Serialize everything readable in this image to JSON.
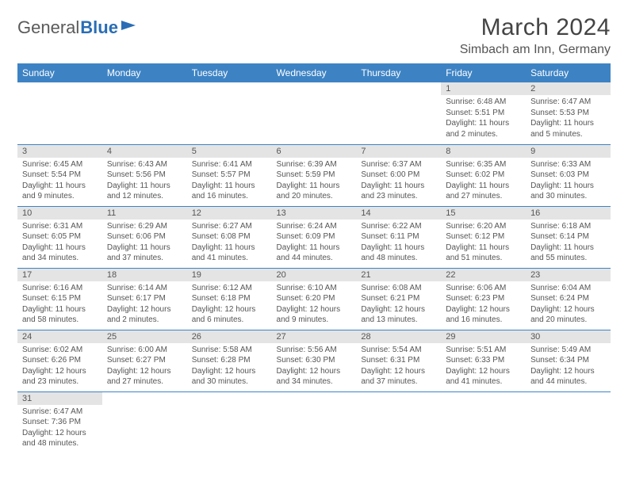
{
  "logo": {
    "text1": "General",
    "text2": "Blue"
  },
  "title": "March 2024",
  "location": "Simbach am Inn, Germany",
  "colors": {
    "header_bg": "#3d83c4",
    "header_text": "#ffffff",
    "daynum_bg": "#e4e4e4",
    "border": "#3d83c4",
    "body_text": "#555555"
  },
  "day_headers": [
    "Sunday",
    "Monday",
    "Tuesday",
    "Wednesday",
    "Thursday",
    "Friday",
    "Saturday"
  ],
  "weeks": [
    [
      {
        "n": "",
        "empty": true
      },
      {
        "n": "",
        "empty": true
      },
      {
        "n": "",
        "empty": true
      },
      {
        "n": "",
        "empty": true
      },
      {
        "n": "",
        "empty": true
      },
      {
        "n": "1",
        "sr": "Sunrise: 6:48 AM",
        "ss": "Sunset: 5:51 PM",
        "dl1": "Daylight: 11 hours",
        "dl2": "and 2 minutes."
      },
      {
        "n": "2",
        "sr": "Sunrise: 6:47 AM",
        "ss": "Sunset: 5:53 PM",
        "dl1": "Daylight: 11 hours",
        "dl2": "and 5 minutes."
      }
    ],
    [
      {
        "n": "3",
        "sr": "Sunrise: 6:45 AM",
        "ss": "Sunset: 5:54 PM",
        "dl1": "Daylight: 11 hours",
        "dl2": "and 9 minutes."
      },
      {
        "n": "4",
        "sr": "Sunrise: 6:43 AM",
        "ss": "Sunset: 5:56 PM",
        "dl1": "Daylight: 11 hours",
        "dl2": "and 12 minutes."
      },
      {
        "n": "5",
        "sr": "Sunrise: 6:41 AM",
        "ss": "Sunset: 5:57 PM",
        "dl1": "Daylight: 11 hours",
        "dl2": "and 16 minutes."
      },
      {
        "n": "6",
        "sr": "Sunrise: 6:39 AM",
        "ss": "Sunset: 5:59 PM",
        "dl1": "Daylight: 11 hours",
        "dl2": "and 20 minutes."
      },
      {
        "n": "7",
        "sr": "Sunrise: 6:37 AM",
        "ss": "Sunset: 6:00 PM",
        "dl1": "Daylight: 11 hours",
        "dl2": "and 23 minutes."
      },
      {
        "n": "8",
        "sr": "Sunrise: 6:35 AM",
        "ss": "Sunset: 6:02 PM",
        "dl1": "Daylight: 11 hours",
        "dl2": "and 27 minutes."
      },
      {
        "n": "9",
        "sr": "Sunrise: 6:33 AM",
        "ss": "Sunset: 6:03 PM",
        "dl1": "Daylight: 11 hours",
        "dl2": "and 30 minutes."
      }
    ],
    [
      {
        "n": "10",
        "sr": "Sunrise: 6:31 AM",
        "ss": "Sunset: 6:05 PM",
        "dl1": "Daylight: 11 hours",
        "dl2": "and 34 minutes."
      },
      {
        "n": "11",
        "sr": "Sunrise: 6:29 AM",
        "ss": "Sunset: 6:06 PM",
        "dl1": "Daylight: 11 hours",
        "dl2": "and 37 minutes."
      },
      {
        "n": "12",
        "sr": "Sunrise: 6:27 AM",
        "ss": "Sunset: 6:08 PM",
        "dl1": "Daylight: 11 hours",
        "dl2": "and 41 minutes."
      },
      {
        "n": "13",
        "sr": "Sunrise: 6:24 AM",
        "ss": "Sunset: 6:09 PM",
        "dl1": "Daylight: 11 hours",
        "dl2": "and 44 minutes."
      },
      {
        "n": "14",
        "sr": "Sunrise: 6:22 AM",
        "ss": "Sunset: 6:11 PM",
        "dl1": "Daylight: 11 hours",
        "dl2": "and 48 minutes."
      },
      {
        "n": "15",
        "sr": "Sunrise: 6:20 AM",
        "ss": "Sunset: 6:12 PM",
        "dl1": "Daylight: 11 hours",
        "dl2": "and 51 minutes."
      },
      {
        "n": "16",
        "sr": "Sunrise: 6:18 AM",
        "ss": "Sunset: 6:14 PM",
        "dl1": "Daylight: 11 hours",
        "dl2": "and 55 minutes."
      }
    ],
    [
      {
        "n": "17",
        "sr": "Sunrise: 6:16 AM",
        "ss": "Sunset: 6:15 PM",
        "dl1": "Daylight: 11 hours",
        "dl2": "and 58 minutes."
      },
      {
        "n": "18",
        "sr": "Sunrise: 6:14 AM",
        "ss": "Sunset: 6:17 PM",
        "dl1": "Daylight: 12 hours",
        "dl2": "and 2 minutes."
      },
      {
        "n": "19",
        "sr": "Sunrise: 6:12 AM",
        "ss": "Sunset: 6:18 PM",
        "dl1": "Daylight: 12 hours",
        "dl2": "and 6 minutes."
      },
      {
        "n": "20",
        "sr": "Sunrise: 6:10 AM",
        "ss": "Sunset: 6:20 PM",
        "dl1": "Daylight: 12 hours",
        "dl2": "and 9 minutes."
      },
      {
        "n": "21",
        "sr": "Sunrise: 6:08 AM",
        "ss": "Sunset: 6:21 PM",
        "dl1": "Daylight: 12 hours",
        "dl2": "and 13 minutes."
      },
      {
        "n": "22",
        "sr": "Sunrise: 6:06 AM",
        "ss": "Sunset: 6:23 PM",
        "dl1": "Daylight: 12 hours",
        "dl2": "and 16 minutes."
      },
      {
        "n": "23",
        "sr": "Sunrise: 6:04 AM",
        "ss": "Sunset: 6:24 PM",
        "dl1": "Daylight: 12 hours",
        "dl2": "and 20 minutes."
      }
    ],
    [
      {
        "n": "24",
        "sr": "Sunrise: 6:02 AM",
        "ss": "Sunset: 6:26 PM",
        "dl1": "Daylight: 12 hours",
        "dl2": "and 23 minutes."
      },
      {
        "n": "25",
        "sr": "Sunrise: 6:00 AM",
        "ss": "Sunset: 6:27 PM",
        "dl1": "Daylight: 12 hours",
        "dl2": "and 27 minutes."
      },
      {
        "n": "26",
        "sr": "Sunrise: 5:58 AM",
        "ss": "Sunset: 6:28 PM",
        "dl1": "Daylight: 12 hours",
        "dl2": "and 30 minutes."
      },
      {
        "n": "27",
        "sr": "Sunrise: 5:56 AM",
        "ss": "Sunset: 6:30 PM",
        "dl1": "Daylight: 12 hours",
        "dl2": "and 34 minutes."
      },
      {
        "n": "28",
        "sr": "Sunrise: 5:54 AM",
        "ss": "Sunset: 6:31 PM",
        "dl1": "Daylight: 12 hours",
        "dl2": "and 37 minutes."
      },
      {
        "n": "29",
        "sr": "Sunrise: 5:51 AM",
        "ss": "Sunset: 6:33 PM",
        "dl1": "Daylight: 12 hours",
        "dl2": "and 41 minutes."
      },
      {
        "n": "30",
        "sr": "Sunrise: 5:49 AM",
        "ss": "Sunset: 6:34 PM",
        "dl1": "Daylight: 12 hours",
        "dl2": "and 44 minutes."
      }
    ],
    [
      {
        "n": "31",
        "sr": "Sunrise: 6:47 AM",
        "ss": "Sunset: 7:36 PM",
        "dl1": "Daylight: 12 hours",
        "dl2": "and 48 minutes."
      },
      {
        "n": "",
        "empty": true
      },
      {
        "n": "",
        "empty": true
      },
      {
        "n": "",
        "empty": true
      },
      {
        "n": "",
        "empty": true
      },
      {
        "n": "",
        "empty": true
      },
      {
        "n": "",
        "empty": true
      }
    ]
  ]
}
